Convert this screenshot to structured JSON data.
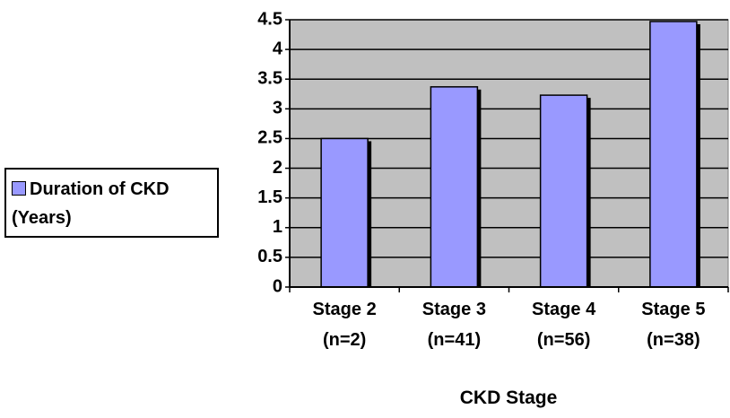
{
  "chart_data": {
    "type": "bar",
    "x_label": "CKD Stage",
    "categories": [
      "Stage 2 (n=2)",
      "Stage 3 (n=41)",
      "Stage 4 (n=56)",
      "Stage 5 (n=38)"
    ],
    "series": [
      {
        "name": "Duration of CKD (Years)",
        "color": "#9999ff",
        "values": [
          2.5,
          3.37,
          3.23,
          4.47
        ]
      }
    ],
    "ylim": [
      0,
      4.5
    ],
    "yticks": [
      0,
      0.5,
      1,
      1.5,
      2,
      2.5,
      3,
      3.5,
      4,
      4.5
    ],
    "grid": true,
    "legend": "left",
    "plot_background": "#c0c0c0"
  }
}
